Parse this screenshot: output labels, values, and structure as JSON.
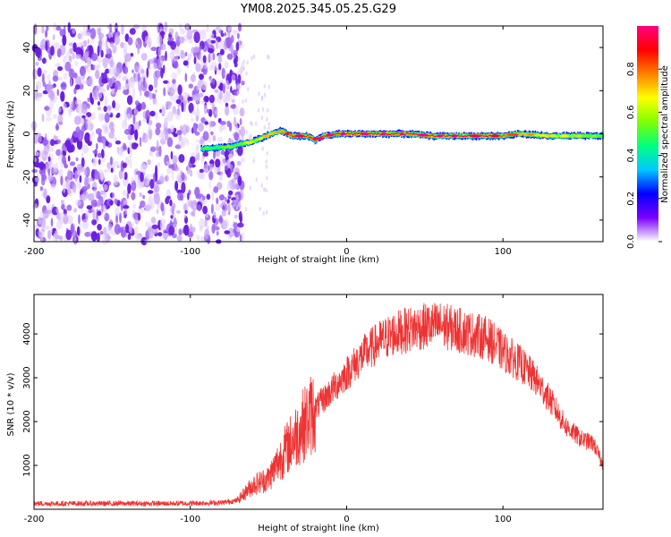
{
  "chart_data": [
    {
      "type": "heatmap",
      "title": "YM08.2025.345.05.25.G29",
      "xlabel": "Height of straight line (km)",
      "ylabel": "Frequency (Hz)",
      "xlim": [
        -200,
        164
      ],
      "ylim": [
        -50,
        50
      ],
      "xticks": [
        -200,
        -100,
        0,
        100
      ],
      "yticks": [
        -40,
        -20,
        0,
        20,
        40
      ],
      "colorbar": {
        "label": "Normalized spectral amplitude",
        "range": [
          0,
          1
        ],
        "ticks": [
          "0.0",
          "0.2",
          "0.4",
          "0.6",
          "0.8"
        ],
        "colors": [
          "#ffffff",
          "#7a00ff",
          "#0000ff",
          "#00c8ff",
          "#00ff80",
          "#80ff00",
          "#ffff00",
          "#ff8000",
          "#ff0000",
          "#ff0080"
        ]
      },
      "noise_region_x": [
        -200,
        -72
      ],
      "signal_track": [
        {
          "x": -93,
          "f": -7
        },
        {
          "x": -85,
          "f": -6.5
        },
        {
          "x": -75,
          "f": -6
        },
        {
          "x": -70,
          "f": -5
        },
        {
          "x": -62,
          "f": -4
        },
        {
          "x": -55,
          "f": -2
        },
        {
          "x": -48,
          "f": 0
        },
        {
          "x": -42,
          "f": 1.5
        },
        {
          "x": -35,
          "f": -1
        },
        {
          "x": -25,
          "f": -1
        },
        {
          "x": -20,
          "f": -3
        },
        {
          "x": -15,
          "f": -1
        },
        {
          "x": -5,
          "f": 0
        },
        {
          "x": 5,
          "f": 0
        },
        {
          "x": 20,
          "f": 0
        },
        {
          "x": 40,
          "f": 0
        },
        {
          "x": 55,
          "f": -1
        },
        {
          "x": 70,
          "f": -1
        },
        {
          "x": 90,
          "f": -1
        },
        {
          "x": 100,
          "f": -1
        },
        {
          "x": 110,
          "f": 0
        },
        {
          "x": 130,
          "f": -1
        },
        {
          "x": 150,
          "f": -1
        },
        {
          "x": 164,
          "f": -1
        }
      ],
      "signal_peak_amplitude": [
        {
          "x": -90,
          "a": 0.45
        },
        {
          "x": -70,
          "a": 0.5
        },
        {
          "x": -50,
          "a": 0.7
        },
        {
          "x": -30,
          "a": 0.9
        },
        {
          "x": 0,
          "a": 0.95
        },
        {
          "x": 30,
          "a": 0.95
        },
        {
          "x": 60,
          "a": 0.95
        },
        {
          "x": 90,
          "a": 0.9
        },
        {
          "x": 110,
          "a": 0.75
        },
        {
          "x": 140,
          "a": 0.6
        },
        {
          "x": 164,
          "a": 0.5
        }
      ]
    },
    {
      "type": "line",
      "title": "",
      "xlabel": "Height of straight line (km)",
      "ylabel": "SNR (10 * v/v)",
      "xlim": [
        -200,
        164
      ],
      "ylim": [
        0,
        4900
      ],
      "xticks": [
        -200,
        -100,
        0,
        100
      ],
      "yticks": [
        1000,
        2000,
        3000,
        4000
      ],
      "series": [
        {
          "name": "SNR",
          "color": "#ee3333",
          "envelope": [
            {
              "x": -200,
              "y": 130
            },
            {
              "x": -150,
              "y": 130
            },
            {
              "x": -110,
              "y": 130
            },
            {
              "x": -80,
              "y": 150
            },
            {
              "x": -70,
              "y": 200
            },
            {
              "x": -60,
              "y": 550
            },
            {
              "x": -50,
              "y": 700
            },
            {
              "x": -40,
              "y": 1300
            },
            {
              "x": -30,
              "y": 1800
            },
            {
              "x": -20,
              "y": 2300
            },
            {
              "x": -10,
              "y": 2700
            },
            {
              "x": 0,
              "y": 3100
            },
            {
              "x": 10,
              "y": 3500
            },
            {
              "x": 20,
              "y": 3800
            },
            {
              "x": 30,
              "y": 4000
            },
            {
              "x": 45,
              "y": 4150
            },
            {
              "x": 60,
              "y": 4200
            },
            {
              "x": 75,
              "y": 4050
            },
            {
              "x": 90,
              "y": 3900
            },
            {
              "x": 100,
              "y": 3600
            },
            {
              "x": 110,
              "y": 3350
            },
            {
              "x": 120,
              "y": 3000
            },
            {
              "x": 130,
              "y": 2500
            },
            {
              "x": 140,
              "y": 1900
            },
            {
              "x": 150,
              "y": 1600
            },
            {
              "x": 158,
              "y": 1500
            },
            {
              "x": 164,
              "y": 1000
            }
          ]
        }
      ]
    }
  ]
}
